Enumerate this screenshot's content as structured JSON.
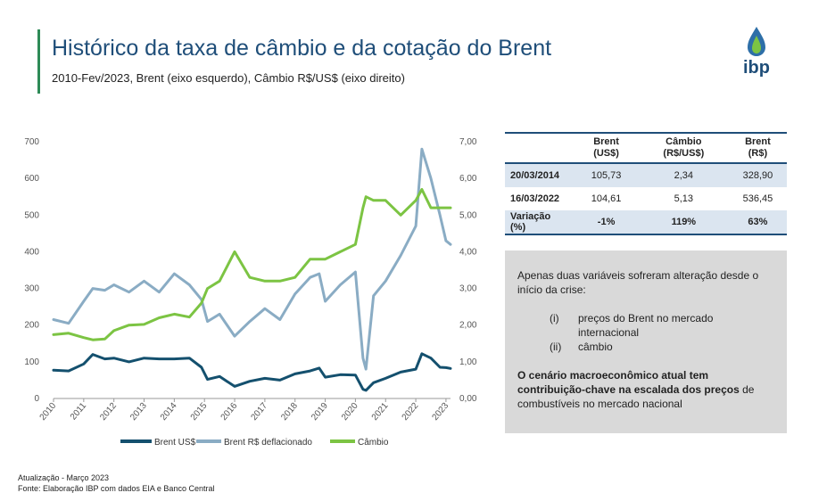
{
  "header": {
    "title": "Histórico da taxa de câmbio e da cotação do Brent",
    "subtitle": "2010-Fev/2023, Brent (eixo esquerdo), Câmbio R$/US$ (eixo direito)",
    "logo_text": "ibp"
  },
  "colors": {
    "title": "#1f4e79",
    "accent_bar": "#2e8b57",
    "brent_usd": "#14506e",
    "brent_brl_deflated": "#8aacc4",
    "cambio": "#7cc443",
    "table_shade": "#dbe5f0",
    "box_bg": "#d9d9d9"
  },
  "chart_data": {
    "type": "line",
    "x_tick_labels": [
      "2010",
      "2011",
      "2012",
      "2013",
      "2014",
      "2015",
      "2016",
      "2017",
      "2018",
      "2019",
      "2020",
      "2021",
      "2022",
      "2023"
    ],
    "y_left_ticks": [
      "0",
      "100",
      "200",
      "300",
      "400",
      "500",
      "600",
      "700"
    ],
    "y_left_range": [
      0,
      700
    ],
    "y_right_ticks": [
      "0,00",
      "1,00",
      "2,00",
      "3,00",
      "4,00",
      "5,00",
      "6,00",
      "7,00"
    ],
    "y_right_range": [
      0,
      7
    ],
    "legend_position": "bottom",
    "grid": false,
    "x": [
      2010.0,
      2010.5,
      2011.0,
      2011.3,
      2011.7,
      2012.0,
      2012.5,
      2013.0,
      2013.5,
      2014.0,
      2014.5,
      2014.9,
      2015.1,
      2015.5,
      2016.0,
      2016.5,
      2017.0,
      2017.5,
      2018.0,
      2018.5,
      2018.8,
      2019.0,
      2019.5,
      2020.0,
      2020.25,
      2020.35,
      2020.6,
      2021.0,
      2021.5,
      2022.0,
      2022.2,
      2022.5,
      2022.8,
      2023.0,
      2023.15
    ],
    "series": [
      {
        "name": "Brent US$",
        "axis": "left",
        "values": [
          77,
          75,
          94,
          120,
          108,
          110,
          100,
          110,
          108,
          108,
          110,
          85,
          52,
          60,
          33,
          47,
          55,
          50,
          67,
          75,
          83,
          58,
          65,
          64,
          25,
          22,
          43,
          55,
          72,
          80,
          122,
          110,
          85,
          84,
          82
        ]
      },
      {
        "name": "Brent R$ deflacionado",
        "axis": "left",
        "values": [
          215,
          205,
          265,
          300,
          295,
          310,
          290,
          320,
          290,
          340,
          310,
          270,
          210,
          230,
          170,
          210,
          245,
          215,
          285,
          330,
          340,
          265,
          310,
          345,
          110,
          80,
          280,
          320,
          390,
          470,
          680,
          600,
          500,
          430,
          420
        ]
      },
      {
        "name": "Câmbio",
        "axis": "right",
        "values": [
          1.74,
          1.78,
          1.66,
          1.6,
          1.62,
          1.85,
          2.0,
          2.02,
          2.2,
          2.3,
          2.22,
          2.6,
          3.0,
          3.2,
          4.0,
          3.3,
          3.2,
          3.2,
          3.3,
          3.8,
          3.8,
          3.8,
          4.0,
          4.2,
          5.2,
          5.5,
          5.4,
          5.4,
          5.0,
          5.4,
          5.7,
          5.2,
          5.2,
          5.2,
          5.2
        ]
      }
    ]
  },
  "legend": {
    "brent_usd": "Brent US$",
    "brent_brl": "Brent R$ deflacionado",
    "cambio": "Câmbio"
  },
  "table": {
    "headers": [
      "",
      "Brent (US$)",
      "Câmbio (R$/US$)",
      "Brent (R$)"
    ],
    "rows": [
      {
        "label": "20/03/2014",
        "brent_usd": "105,73",
        "cambio": "2,34",
        "brent_brl": "328,90"
      },
      {
        "label": "16/03/2022",
        "brent_usd": "104,61",
        "cambio": "5,13",
        "brent_brl": "536,45"
      },
      {
        "label": "Variação (%)",
        "brent_usd": "-1%",
        "cambio": "119%",
        "brent_brl": "63%"
      }
    ]
  },
  "notes": {
    "intro": "Apenas duas variáveis sofreram alteração desde o início da crise:",
    "items": [
      {
        "num": "(i)",
        "text": "preços do Brent no mercado internacional"
      },
      {
        "num": "(ii)",
        "text": "câmbio"
      }
    ],
    "conclusion_bold": "O cenário macroeconômico atual tem contribuição-chave na escalada dos preços",
    "conclusion_rest": "de combustíveis no mercado nacional"
  },
  "footer": {
    "update": "Atualização - Março 2023",
    "source": "Fonte: Elaboração IBP com dados EIA e Banco Central"
  }
}
